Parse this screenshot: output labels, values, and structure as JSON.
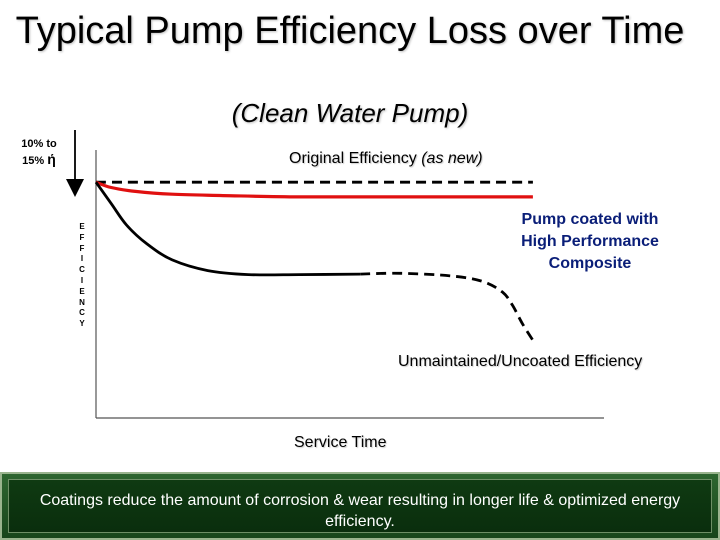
{
  "slide": {
    "title": "Typical Pump Efficiency Loss over Time",
    "subtitle": "(Clean Water Pump)",
    "drop_label_line1": "10% to",
    "drop_label_line2": "15%",
    "drop_label_symbol": "ή",
    "footer": "Coatings reduce the amount of corrosion & wear resulting in longer life & optimized energy efficiency."
  },
  "chart_data": {
    "type": "line",
    "xlabel": "Service Time",
    "ylabel": "EFFICIENCY",
    "ylabel_letters": [
      "E",
      "F",
      "F",
      "I",
      "C",
      "I",
      "E",
      "N",
      "C",
      "Y"
    ],
    "xlim": [
      0,
      100
    ],
    "ylim": [
      0,
      100
    ],
    "grid": false,
    "annotations": {
      "original": "Original Efficiency",
      "original_paren": "(as new)",
      "coated": "Pump coated with High Performance Composite",
      "unmaintained": "Unmaintained/Uncoated Efficiency"
    },
    "series": [
      {
        "key": "original",
        "color": "#000000",
        "dashed": true,
        "points": [
          [
            0,
            88
          ],
          [
            86,
            88
          ]
        ]
      },
      {
        "key": "coated",
        "color": "#e01010",
        "dashed": false,
        "points": [
          [
            0,
            88
          ],
          [
            3,
            86
          ],
          [
            8,
            84.5
          ],
          [
            15,
            83.5
          ],
          [
            25,
            83
          ],
          [
            40,
            82.5
          ],
          [
            60,
            82.5
          ],
          [
            86,
            82.5
          ]
        ]
      },
      {
        "key": "unmaintained",
        "color": "#000000",
        "dashed": false,
        "points": [
          [
            0,
            88
          ],
          [
            3,
            80
          ],
          [
            6,
            72
          ],
          [
            10,
            65
          ],
          [
            15,
            59
          ],
          [
            22,
            55
          ],
          [
            30,
            53.5
          ],
          [
            40,
            53.5
          ],
          [
            52,
            53.7
          ]
        ]
      },
      {
        "key": "unmaintained_projection",
        "color": "#000000",
        "dashed": true,
        "points": [
          [
            52,
            53.7
          ],
          [
            60,
            54
          ],
          [
            70,
            53
          ],
          [
            76,
            51
          ],
          [
            80,
            47
          ],
          [
            82,
            42
          ],
          [
            84,
            35
          ],
          [
            86,
            29
          ]
        ]
      }
    ],
    "markers": {
      "drop_arrow": {
        "from": 100,
        "to": 88
      }
    }
  }
}
